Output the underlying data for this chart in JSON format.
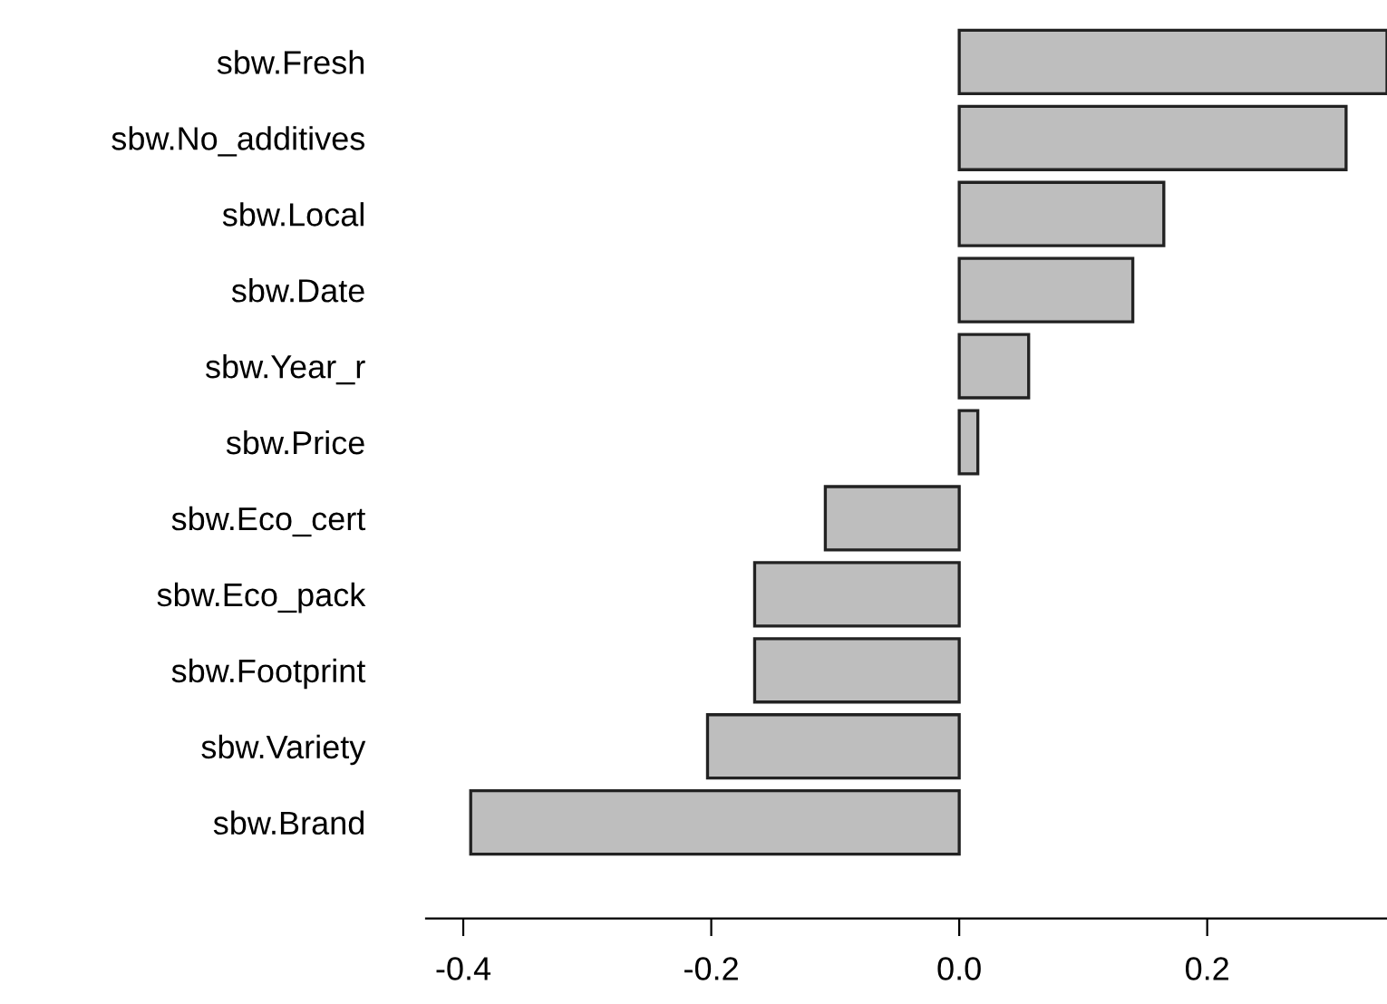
{
  "chart_data": {
    "type": "bar",
    "orientation": "horizontal",
    "categories": [
      "sbw.Fresh",
      "sbw.No_additives",
      "sbw.Local",
      "sbw.Date",
      "sbw.Year_r",
      "sbw.Price",
      "sbw.Eco_cert",
      "sbw.Eco_pack",
      "sbw.Footprint",
      "sbw.Variety",
      "sbw.Brand"
    ],
    "values": [
      0.345,
      0.312,
      0.165,
      0.14,
      0.056,
      0.015,
      -0.108,
      -0.165,
      -0.165,
      -0.203,
      -0.394
    ],
    "color": "#bebebe",
    "xlim": [
      -0.43,
      0.345
    ],
    "xticks": [
      {
        "value": -0.4,
        "label": "-0.4"
      },
      {
        "value": -0.2,
        "label": "-0.2"
      },
      {
        "value": 0.0,
        "label": "0.0"
      },
      {
        "value": 0.2,
        "label": "0.2"
      }
    ],
    "grid": false
  }
}
